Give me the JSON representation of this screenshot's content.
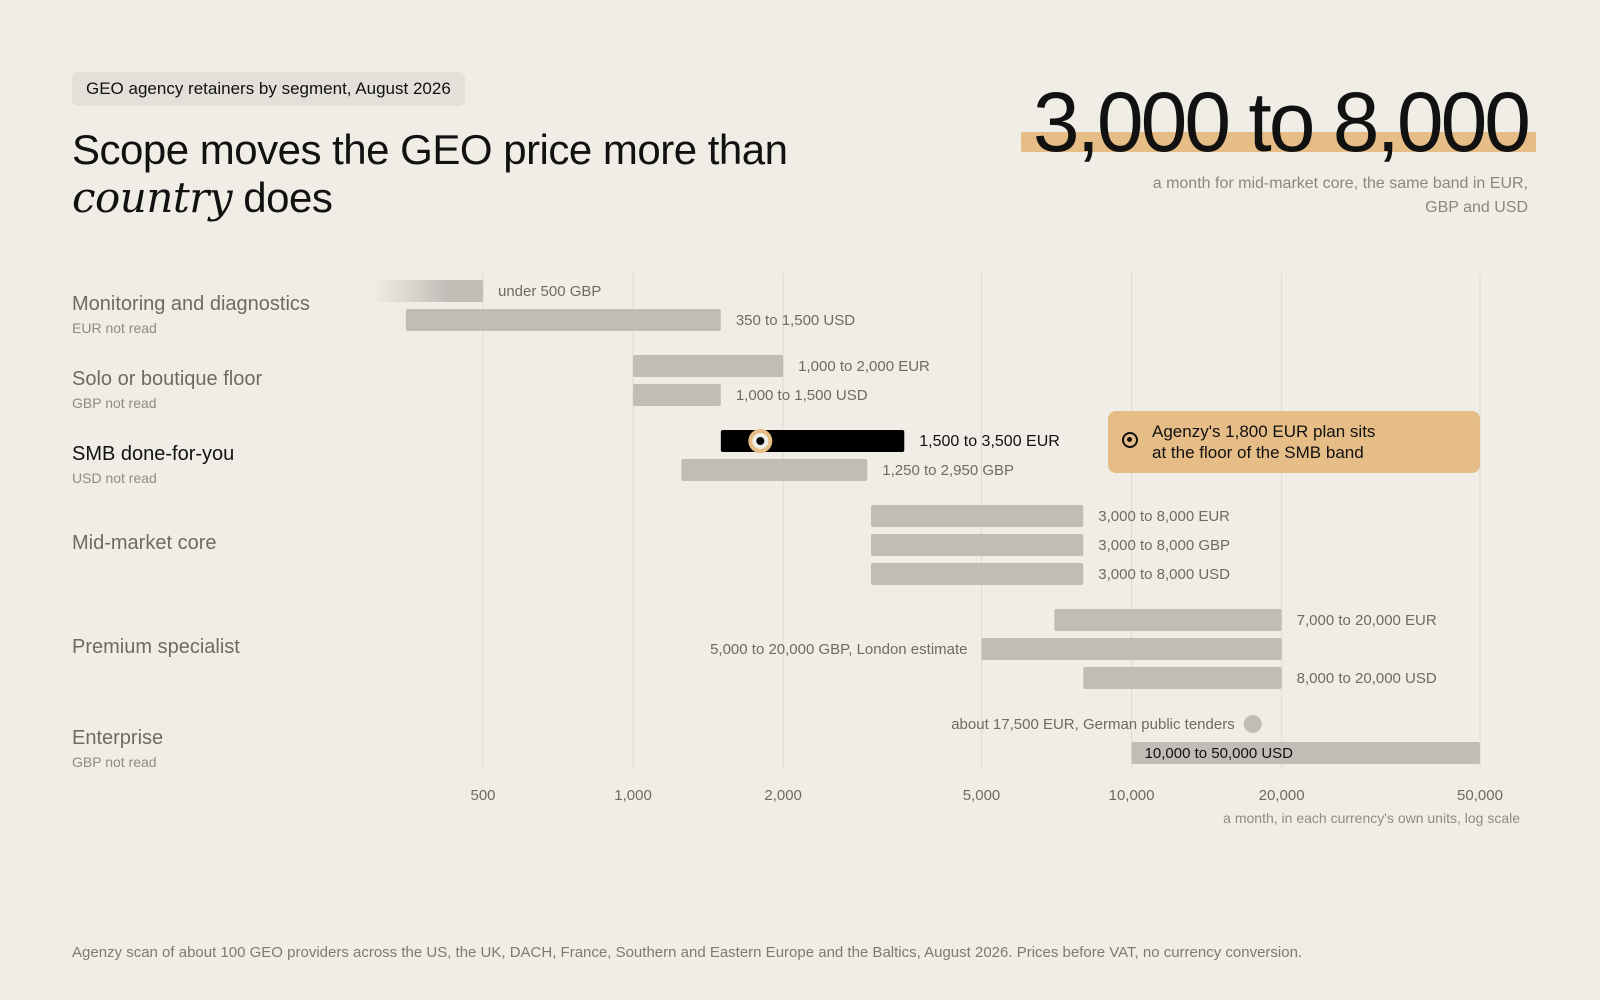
{
  "header": {
    "kicker": "GEO agency retainers by segment, August 2026",
    "title_part1": "Scope moves the GEO price more than",
    "title_italic": "country",
    "title_part2": "does",
    "headline_number": "3,000 to 8,000",
    "headline_sub": "a month for mid-market core, the same band in EUR, GBP and USD"
  },
  "rows": [
    {
      "name": "Monitoring and diagnostics",
      "note": "EUR not read"
    },
    {
      "name": "Solo or boutique floor",
      "note": "GBP not read"
    },
    {
      "name": "SMB done-for-you",
      "note": "USD not read"
    },
    {
      "name": "Mid-market core",
      "note": ""
    },
    {
      "name": "Premium specialist",
      "note": ""
    },
    {
      "name": "Enterprise",
      "note": "GBP not read"
    }
  ],
  "callout": {
    "line1": "Agenzy's 1,800 EUR plan sits",
    "line2": "at the floor of the SMB band"
  },
  "footer": "Agenzy scan of about 100 GEO providers across the US, the UK, DACH, France, Southern and Eastern Europe and the Baltics, August 2026. Prices before VAT, no currency conversion.",
  "colors": {
    "background": "#f0ede6",
    "bar": "#c0bdb7",
    "highlight_bar": "#000000",
    "accent": "#e6bd86",
    "grid": "#dedad3"
  },
  "chart_data": {
    "type": "bar",
    "orientation": "horizontal range",
    "x_scale": "log",
    "xlim": [
      300,
      50000
    ],
    "x_ticks": [
      500,
      1000,
      2000,
      5000,
      10000,
      20000,
      50000
    ],
    "x_tick_labels": [
      "500",
      "1,000",
      "2,000",
      "5,000",
      "10,000",
      "20,000",
      "50,000"
    ],
    "xlabel": "a month, in each currency's own units, log scale",
    "grid": true,
    "series": [
      {
        "segment": 0,
        "currency": "GBP",
        "low": 300,
        "high": 500,
        "label": "under 500 GBP",
        "style": "fade"
      },
      {
        "segment": 0,
        "currency": "USD",
        "low": 350,
        "high": 1500,
        "label": "350 to 1,500 USD"
      },
      {
        "segment": 1,
        "currency": "EUR",
        "low": 1000,
        "high": 2000,
        "label": "1,000 to 2,000 EUR"
      },
      {
        "segment": 1,
        "currency": "USD",
        "low": 1000,
        "high": 1500,
        "label": "1,000 to 1,500 USD"
      },
      {
        "segment": 2,
        "currency": "EUR",
        "low": 1500,
        "high": 3500,
        "label": "1,500 to 3,500 EUR",
        "style": "highlight",
        "marker": 1800
      },
      {
        "segment": 2,
        "currency": "GBP",
        "low": 1250,
        "high": 2950,
        "label": "1,250 to 2,950 GBP"
      },
      {
        "segment": 3,
        "currency": "EUR",
        "low": 3000,
        "high": 8000,
        "label": "3,000 to 8,000 EUR"
      },
      {
        "segment": 3,
        "currency": "GBP",
        "low": 3000,
        "high": 8000,
        "label": "3,000 to 8,000 GBP"
      },
      {
        "segment": 3,
        "currency": "USD",
        "low": 3000,
        "high": 8000,
        "label": "3,000 to 8,000 USD"
      },
      {
        "segment": 4,
        "currency": "EUR",
        "low": 7000,
        "high": 20000,
        "label": "7,000 to 20,000 EUR"
      },
      {
        "segment": 4,
        "currency": "GBP",
        "low": 5000,
        "high": 20000,
        "label": "5,000 to 20,000 GBP, London estimate",
        "label_side": "left"
      },
      {
        "segment": 4,
        "currency": "USD",
        "low": 8000,
        "high": 20000,
        "label": "8,000 to 20,000 USD"
      },
      {
        "segment": 5,
        "currency": "EUR",
        "point": 17500,
        "label": "about 17,500 EUR, German public tenders",
        "label_side": "left"
      },
      {
        "segment": 5,
        "currency": "USD",
        "low": 10000,
        "high": 50000,
        "label": "10,000 to 50,000 USD",
        "label_side": "inside"
      }
    ]
  }
}
